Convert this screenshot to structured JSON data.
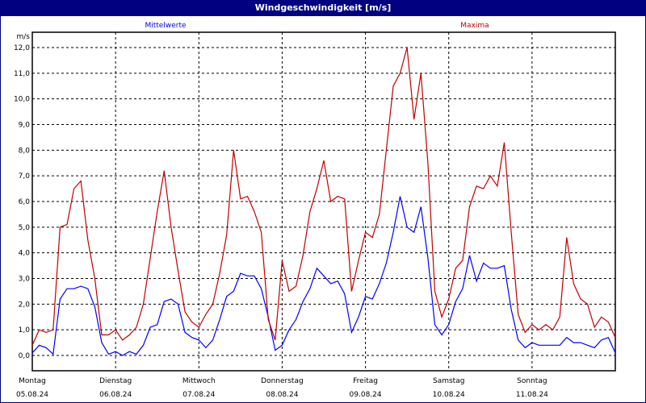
{
  "title": "Windgeschwindigkeit [m/s]",
  "chart_data": {
    "type": "line",
    "title": "Windgeschwindigkeit [m/s]",
    "ylabel": "m/s",
    "ylim": [
      0,
      12
    ],
    "yticks": [
      "0,0",
      "1,0",
      "2,0",
      "3,0",
      "4,0",
      "5,0",
      "6,0",
      "7,0",
      "8,0",
      "9,0",
      "10,0",
      "11,0",
      "12,0"
    ],
    "grid": true,
    "legend_placement": "top",
    "xticks": [
      {
        "day": "Montag",
        "date": "05.08.24"
      },
      {
        "day": "Dienstag",
        "date": "06.08.24"
      },
      {
        "day": "Mittwoch",
        "date": "07.08.24"
      },
      {
        "day": "Donnerstag",
        "date": "08.08.24"
      },
      {
        "day": "Freitag",
        "date": "09.08.24"
      },
      {
        "day": "Samstag",
        "date": "10.08.24"
      },
      {
        "day": "Sonntag",
        "date": "11.08.24"
      }
    ],
    "xlim": [
      "05.08.24 00:00",
      "12.08.24 00:00"
    ],
    "x_step": "2h",
    "series": [
      {
        "name": "Mittelwerte",
        "color": "#0000ff",
        "values": [
          0.1,
          0.4,
          0.3,
          0.05,
          2.2,
          2.6,
          2.6,
          2.7,
          2.6,
          1.9,
          0.5,
          0.05,
          0.15,
          0.0,
          0.15,
          0.05,
          0.4,
          1.1,
          1.2,
          2.1,
          2.2,
          2.0,
          0.9,
          0.7,
          0.6,
          0.3,
          0.6,
          1.4,
          2.3,
          2.5,
          3.2,
          3.1,
          3.1,
          2.6,
          1.5,
          0.2,
          0.4,
          1.0,
          1.4,
          2.1,
          2.6,
          3.4,
          3.1,
          2.8,
          2.9,
          2.4,
          0.9,
          1.5,
          2.3,
          2.2,
          2.8,
          3.6,
          4.8,
          6.2,
          5.0,
          4.8,
          5.8,
          3.8,
          1.2,
          0.8,
          1.2,
          2.1,
          2.6,
          3.9,
          2.9,
          3.6,
          3.4,
          3.4,
          3.5,
          1.8,
          0.6,
          0.3,
          0.5,
          0.4,
          0.4,
          0.4,
          0.4,
          0.7,
          0.5,
          0.5,
          0.4,
          0.3,
          0.6,
          0.7,
          0.1
        ]
      },
      {
        "name": "Maxima",
        "color": "#c00000",
        "values": [
          0.4,
          1.0,
          0.9,
          1.0,
          5.0,
          5.1,
          6.5,
          6.8,
          4.5,
          3.0,
          0.8,
          0.8,
          1.0,
          0.6,
          0.8,
          1.1,
          2.0,
          3.8,
          5.6,
          7.2,
          5.0,
          3.3,
          1.7,
          1.3,
          1.1,
          1.6,
          2.0,
          3.2,
          4.7,
          8.0,
          6.1,
          6.2,
          5.6,
          4.8,
          1.4,
          0.6,
          3.7,
          2.5,
          2.7,
          3.9,
          5.6,
          6.5,
          7.6,
          6.0,
          6.2,
          6.1,
          2.5,
          3.7,
          4.8,
          4.6,
          5.5,
          8.0,
          10.5,
          11.0,
          12.0,
          9.2,
          11.0,
          7.5,
          2.5,
          1.5,
          2.2,
          3.4,
          3.7,
          5.8,
          6.6,
          6.5,
          7.0,
          6.6,
          8.3,
          4.8,
          1.6,
          0.9,
          1.2,
          1.0,
          1.2,
          1.0,
          1.5,
          4.6,
          2.8,
          2.2,
          2.0,
          1.1,
          1.5,
          1.3,
          0.7
        ]
      }
    ]
  }
}
